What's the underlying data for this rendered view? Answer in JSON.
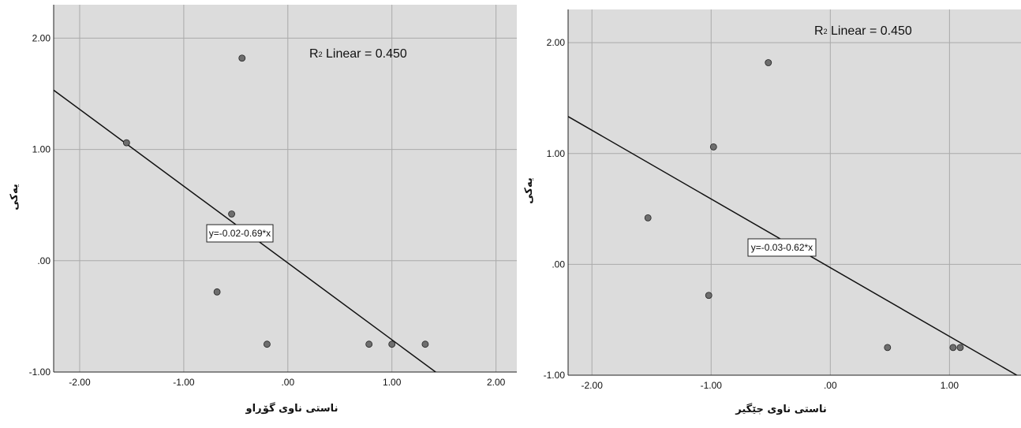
{
  "chart_data": [
    {
      "type": "scatter",
      "xlabel": "ناستی ناوی گۆڕاو",
      "ylabel": "یەکی",
      "xlim": [
        -2.25,
        2.2
      ],
      "ylim": [
        -1.0,
        2.3
      ],
      "x_ticks": [
        -2.0,
        -1.0,
        0.0,
        1.0,
        2.0
      ],
      "y_ticks": [
        -1.0,
        0.0,
        1.0,
        2.0
      ],
      "x_tick_labels": [
        "-2.00",
        "-1.00",
        ".00",
        "1.00",
        "2.00"
      ],
      "y_tick_labels": [
        "-1.00",
        ".00",
        "1.00",
        "2.00"
      ],
      "grid": true,
      "points": [
        {
          "x": -1.55,
          "y": 1.06
        },
        {
          "x": -0.44,
          "y": 1.82
        },
        {
          "x": -0.54,
          "y": 0.42
        },
        {
          "x": -0.68,
          "y": -0.28
        },
        {
          "x": -0.2,
          "y": -0.75
        },
        {
          "x": 0.78,
          "y": -0.75
        },
        {
          "x": 1.0,
          "y": -0.75
        },
        {
          "x": 1.32,
          "y": -0.75
        }
      ],
      "fit_line": {
        "intercept": -0.02,
        "slope": -0.69
      },
      "equation_label": "y=-0.02-0.69*x",
      "r2_label": "R² Linear = 0.450",
      "r2_prefix": "R",
      "r2_suffix": " Linear = 0.450"
    },
    {
      "type": "scatter",
      "xlabel": "ناستی ناوی جێگیر",
      "ylabel": "یەکی",
      "xlim": [
        -2.2,
        1.6
      ],
      "ylim": [
        -1.0,
        2.3
      ],
      "x_ticks": [
        -2.0,
        -1.0,
        0.0,
        1.0
      ],
      "y_ticks": [
        -1.0,
        0.0,
        1.0,
        2.0
      ],
      "x_tick_labels": [
        "-2.00",
        "-1.00",
        ".00",
        "1.00"
      ],
      "y_tick_labels": [
        "-1.00",
        ".00",
        "1.00",
        "2.00"
      ],
      "grid": true,
      "points": [
        {
          "x": -1.53,
          "y": 0.42
        },
        {
          "x": -0.98,
          "y": 1.06
        },
        {
          "x": -0.52,
          "y": 1.82
        },
        {
          "x": -1.02,
          "y": -0.28
        },
        {
          "x": 0.48,
          "y": -0.75
        },
        {
          "x": 1.03,
          "y": -0.75
        },
        {
          "x": 1.09,
          "y": -0.75
        }
      ],
      "fit_line": {
        "intercept": -0.03,
        "slope": -0.62
      },
      "equation_label": "y=-0.03-0.62*x",
      "r2_label": "R² Linear = 0.450",
      "r2_prefix": "R",
      "r2_suffix": " Linear = 0.450"
    }
  ],
  "colors": {
    "plot_bg": "#dcdcdc",
    "grid": "#aaaaaa",
    "point_fill": "#6e6e6e",
    "line": "#111111"
  }
}
